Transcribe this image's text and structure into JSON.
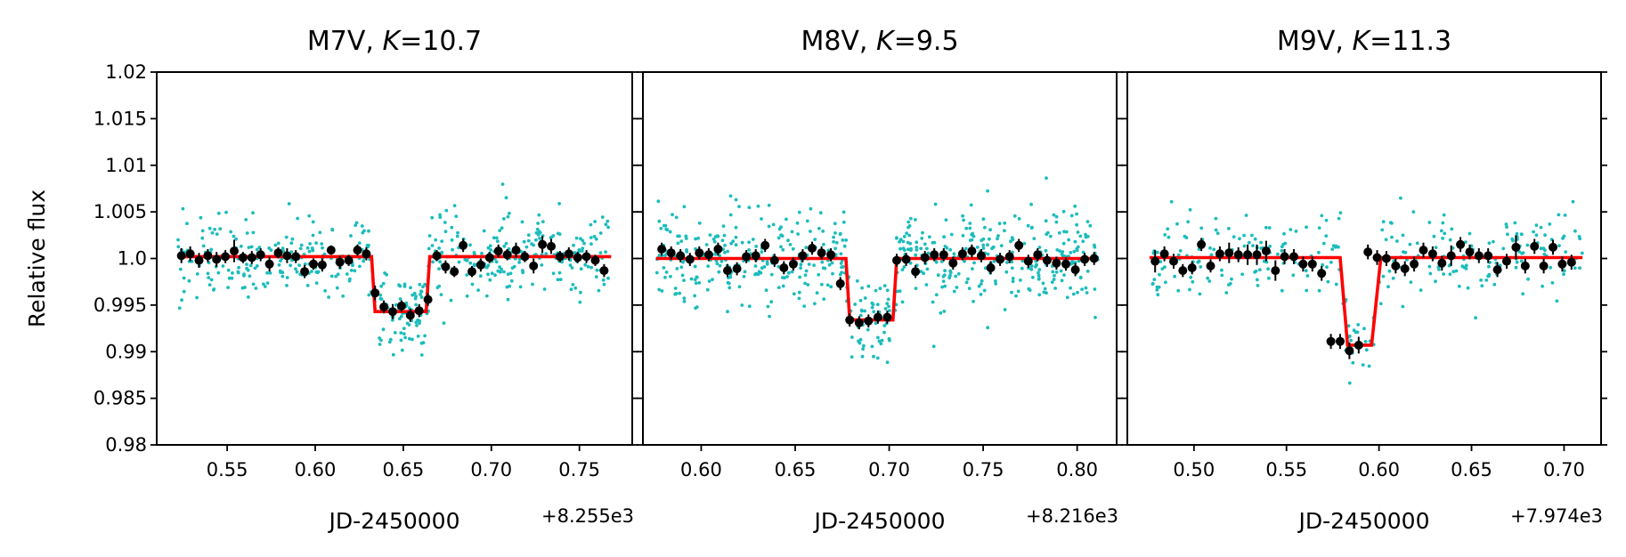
{
  "chart_data": [
    {
      "type": "scatter",
      "title_text": "M7V, ",
      "title_k": "K",
      "title_value": "=10.7",
      "xlabel": "JD-2450000",
      "x_offset_label": "+8.255e3",
      "ylabel": "Relative flux",
      "xlim": [
        0.51,
        0.78
      ],
      "ylim": [
        0.98,
        1.02
      ],
      "x_ticks": [
        0.55,
        0.6,
        0.65,
        0.7,
        0.75
      ],
      "x_tick_labels": [
        "0.55",
        "0.60",
        "0.65",
        "0.70",
        "0.75"
      ],
      "y_ticks": [
        0.98,
        0.985,
        0.99,
        0.995,
        1.0,
        1.005,
        1.01,
        1.015,
        1.02
      ],
      "y_tick_labels": [
        "0.98",
        "0.985",
        "0.99",
        "0.995",
        "1.0",
        "1.005",
        "1.01",
        "1.015",
        "1.02"
      ],
      "legend": "none",
      "raw_series": {
        "name": "raw photometry",
        "color": "#1cbcbc",
        "x_range": [
          0.522,
          0.768
        ],
        "n_points": 520,
        "noise_sigma": 0.0022,
        "seed": 7
      },
      "model": {
        "name": "transit model",
        "color": "#ff0000",
        "x": [
          0.522,
          0.632,
          0.634,
          0.663,
          0.665,
          0.768
        ],
        "y": [
          1.0002,
          1.0002,
          0.9943,
          0.9943,
          1.0002,
          1.0002
        ]
      },
      "binned": {
        "name": "binned data",
        "color": "#000000",
        "x": [
          0.524,
          0.529,
          0.534,
          0.539,
          0.544,
          0.549,
          0.554,
          0.559,
          0.564,
          0.569,
          0.574,
          0.579,
          0.584,
          0.589,
          0.594,
          0.599,
          0.604,
          0.609,
          0.614,
          0.619,
          0.624,
          0.629,
          0.634,
          0.639,
          0.644,
          0.649,
          0.654,
          0.659,
          0.664,
          0.669,
          0.674,
          0.679,
          0.684,
          0.689,
          0.694,
          0.699,
          0.704,
          0.709,
          0.714,
          0.719,
          0.724,
          0.729,
          0.734,
          0.739,
          0.744,
          0.749,
          0.754,
          0.759,
          0.764
        ],
        "y": [
          1.0003,
          1.0005,
          0.9998,
          1.0003,
          0.9999,
          1.0002,
          1.0008,
          1.0001,
          1.0001,
          1.0004,
          0.9994,
          1.0006,
          1.0003,
          1.0002,
          0.9986,
          0.9994,
          0.9993,
          1.0009,
          0.9996,
          0.9998,
          1.0009,
          1.0005,
          0.9963,
          0.9948,
          0.9943,
          0.9949,
          0.9939,
          0.9944,
          0.9956,
          1.0003,
          0.9991,
          0.9986,
          1.0014,
          0.9986,
          0.9993,
          1.0001,
          1.0008,
          1.0004,
          1.0009,
          1.0002,
          0.9992,
          1.0015,
          1.0013,
          1.0002,
          1.0005,
          1.0001,
          1.0002,
          0.9998,
          0.9987
        ],
        "yerr": [
          0.0008,
          0.0008,
          0.0008,
          0.0007,
          0.0008,
          0.0007,
          0.0012,
          0.0006,
          0.0007,
          0.0007,
          0.0008,
          0.0006,
          0.0008,
          0.0007,
          0.0007,
          0.0006,
          0.0007,
          0.0005,
          0.0007,
          0.0006,
          0.0006,
          0.0007,
          0.0008,
          0.0007,
          0.0008,
          0.0006,
          0.0007,
          0.0007,
          0.0007,
          0.0006,
          0.0007,
          0.0006,
          0.0007,
          0.0006,
          0.0007,
          0.0006,
          0.0007,
          0.0006,
          0.0008,
          0.0006,
          0.0008,
          0.0009,
          0.0008,
          0.0006,
          0.0007,
          0.0006,
          0.0007,
          0.0006,
          0.0007
        ]
      }
    },
    {
      "type": "scatter",
      "title_text": "M8V, ",
      "title_k": "K",
      "title_value": "=9.5",
      "xlabel": "JD-2450000",
      "x_offset_label": "+8.216e3",
      "ylabel": "",
      "xlim": [
        0.569,
        0.821
      ],
      "ylim": [
        0.98,
        1.02
      ],
      "x_ticks": [
        0.6,
        0.65,
        0.7,
        0.75,
        0.8
      ],
      "x_tick_labels": [
        "0.60",
        "0.65",
        "0.70",
        "0.75",
        "0.80"
      ],
      "y_ticks": [
        0.98,
        0.985,
        0.99,
        0.995,
        1.0,
        1.005,
        1.01,
        1.015,
        1.02
      ],
      "y_tick_labels": [],
      "legend": "none",
      "raw_series": {
        "name": "raw photometry",
        "color": "#1cbcbc",
        "x_range": [
          0.576,
          0.811
        ],
        "n_points": 620,
        "noise_sigma": 0.0025,
        "seed": 11
      },
      "model": {
        "name": "transit model",
        "color": "#ff0000",
        "x": [
          0.576,
          0.677,
          0.679,
          0.702,
          0.704,
          0.811
        ],
        "y": [
          1.0,
          1.0,
          0.9934,
          0.9934,
          1.0,
          1.0
        ]
      },
      "binned": {
        "name": "binned data",
        "color": "#000000",
        "x": [
          0.579,
          0.584,
          0.589,
          0.594,
          0.599,
          0.604,
          0.609,
          0.614,
          0.619,
          0.624,
          0.629,
          0.634,
          0.639,
          0.644,
          0.649,
          0.654,
          0.659,
          0.664,
          0.669,
          0.674,
          0.679,
          0.684,
          0.689,
          0.694,
          0.699,
          0.704,
          0.709,
          0.714,
          0.719,
          0.724,
          0.729,
          0.734,
          0.739,
          0.744,
          0.749,
          0.754,
          0.759,
          0.764,
          0.769,
          0.774,
          0.779,
          0.784,
          0.789,
          0.794,
          0.799,
          0.804,
          0.809
        ],
        "y": [
          1.001,
          1.0006,
          1.0003,
          0.9999,
          1.0006,
          1.0004,
          1.001,
          0.9987,
          0.9989,
          1.0002,
          1.0003,
          1.0014,
          0.9998,
          0.999,
          0.9994,
          1.0003,
          1.0011,
          1.0006,
          1.0004,
          0.9973,
          0.9934,
          0.9931,
          0.9933,
          0.9937,
          0.9937,
          0.9998,
          0.9999,
          0.9986,
          1.0001,
          1.0004,
          1.0004,
          0.9995,
          1.0005,
          1.0008,
          1.0003,
          0.999,
          0.9999,
          1.0002,
          1.0014,
          0.9997,
          1.0004,
          0.9998,
          0.9995,
          0.9994,
          0.9988,
          0.9999,
          1.0
        ]
      }
    },
    {
      "type": "scatter",
      "title_text": "M9V, ",
      "title_k": "K",
      "title_value": "=11.3",
      "xlabel": "JD-2450000",
      "x_offset_label": "+7.974e3",
      "ylabel": "",
      "xlim": [
        0.464,
        0.72
      ],
      "ylim": [
        0.98,
        1.02
      ],
      "x_ticks": [
        0.5,
        0.55,
        0.6,
        0.65,
        0.7
      ],
      "x_tick_labels": [
        "0.50",
        "0.55",
        "0.60",
        "0.65",
        "0.70"
      ],
      "y_ticks": [
        0.98,
        0.985,
        0.99,
        0.995,
        1.0,
        1.005,
        1.01,
        1.015,
        1.02
      ],
      "y_tick_labels": [],
      "legend": "none",
      "raw_series": {
        "name": "raw photometry",
        "color": "#1cbcbc",
        "x_range": [
          0.476,
          0.71
        ],
        "n_points": 310,
        "noise_sigma": 0.0022,
        "seed": 23
      },
      "model": {
        "name": "transit model",
        "color": "#ff0000",
        "x": [
          0.476,
          0.579,
          0.583,
          0.596,
          0.601,
          0.71
        ],
        "y": [
          1.0001,
          1.0001,
          0.9907,
          0.9907,
          1.0001,
          1.0001
        ]
      },
      "binned": {
        "name": "binned data",
        "color": "#000000",
        "x": [
          0.479,
          0.484,
          0.489,
          0.494,
          0.499,
          0.504,
          0.509,
          0.514,
          0.519,
          0.524,
          0.529,
          0.534,
          0.539,
          0.544,
          0.549,
          0.554,
          0.559,
          0.564,
          0.569,
          0.574,
          0.579,
          0.584,
          0.589,
          0.594,
          0.599,
          0.604,
          0.609,
          0.614,
          0.619,
          0.624,
          0.629,
          0.634,
          0.639,
          0.644,
          0.649,
          0.654,
          0.659,
          0.664,
          0.669,
          0.674,
          0.679,
          0.684,
          0.689,
          0.694,
          0.699,
          0.704
        ],
        "y": [
          0.9997,
          1.0005,
          0.9997,
          0.9987,
          0.999,
          1.0015,
          0.9992,
          1.0005,
          1.0006,
          1.0004,
          1.0004,
          1.0004,
          1.0008,
          0.9987,
          1.0002,
          1.0002,
          0.9994,
          0.9994,
          0.9984,
          0.9911,
          0.9911,
          0.9901,
          0.9907,
          1.0007,
          1.0001,
          1.0,
          0.9992,
          0.9989,
          0.9994,
          1.0009,
          1.0005,
          0.9995,
          1.0003,
          1.0015,
          1.0007,
          1.0003,
          1.0003,
          0.9988,
          0.9997,
          1.0012,
          0.9992,
          1.0013,
          0.9992,
          1.0012,
          0.9994,
          0.9996
        ],
        "yerr": [
          0.0012,
          0.0008,
          0.0008,
          0.0007,
          0.0007,
          0.0007,
          0.0007,
          0.0008,
          0.0011,
          0.0008,
          0.0011,
          0.0011,
          0.0011,
          0.0011,
          0.0008,
          0.0008,
          0.0008,
          0.0008,
          0.0008,
          0.0008,
          0.0008,
          0.0009,
          0.0009,
          0.0008,
          0.0008,
          0.0008,
          0.0008,
          0.0008,
          0.0008,
          0.0008,
          0.0008,
          0.0008,
          0.0011,
          0.0008,
          0.0008,
          0.0008,
          0.0008,
          0.0008,
          0.0008,
          0.0013,
          0.0008,
          0.0008,
          0.0008,
          0.0008,
          0.0008,
          0.0008
        ]
      }
    }
  ]
}
